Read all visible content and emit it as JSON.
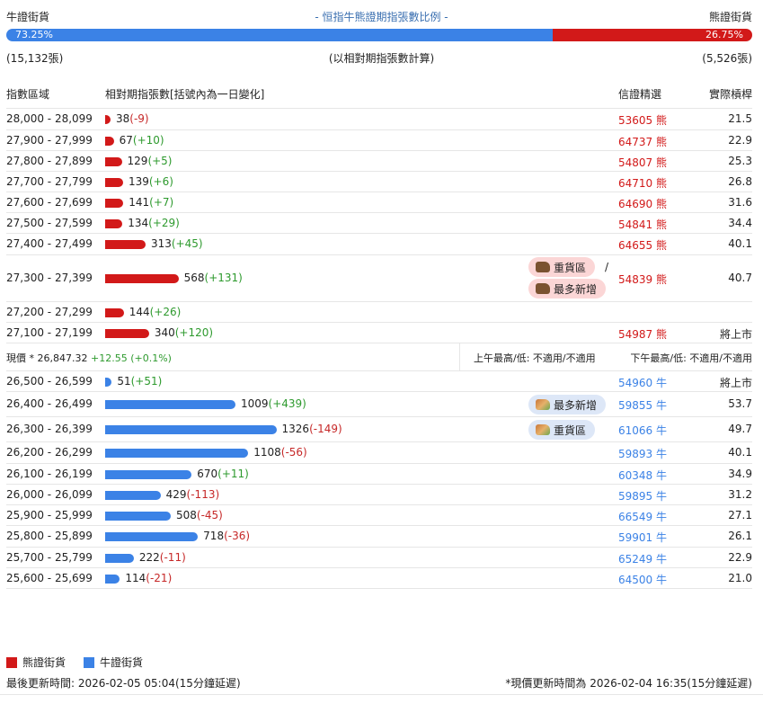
{
  "header": {
    "bull_label": "牛證街貨",
    "title": "- 恒指牛熊證期指張數比例 -",
    "bear_label": "熊證街貨",
    "bull_pct_label": "73.25%",
    "bear_pct_label": "26.75%",
    "bull_pct": 73.25,
    "bear_pct": 26.75,
    "bull_count": "(15,132張)",
    "note": "(以相對期指張數計算)",
    "bear_count": "(5,526張)"
  },
  "columns": {
    "range": "指數區域",
    "count": "相對期指張數[括號內為一日變化]",
    "cert": "信證精選",
    "leverage": "實際槓桿"
  },
  "colors": {
    "bear": "#d21919",
    "bull": "#3b82e6",
    "up": "#2e9a2e",
    "down": "#c62828"
  },
  "bear_rows": [
    {
      "range": "28,000 - 28,099",
      "count": 38,
      "count_text": "38",
      "change": "(-9)",
      "cert": "53605",
      "suffix": "熊",
      "leverage": "21.5"
    },
    {
      "range": "27,900 - 27,999",
      "count": 67,
      "count_text": "67",
      "change": "(+10)",
      "cert": "64737",
      "suffix": "熊",
      "leverage": "22.9"
    },
    {
      "range": "27,800 - 27,899",
      "count": 129,
      "count_text": "129",
      "change": "(+5)",
      "cert": "54807",
      "suffix": "熊",
      "leverage": "25.3"
    },
    {
      "range": "27,700 - 27,799",
      "count": 139,
      "count_text": "139",
      "change": "(+6)",
      "cert": "64710",
      "suffix": "熊",
      "leverage": "26.8"
    },
    {
      "range": "27,600 - 27,699",
      "count": 141,
      "count_text": "141",
      "change": "(+7)",
      "cert": "64690",
      "suffix": "熊",
      "leverage": "31.6"
    },
    {
      "range": "27,500 - 27,599",
      "count": 134,
      "count_text": "134",
      "change": "(+29)",
      "cert": "54841",
      "suffix": "熊",
      "leverage": "34.4"
    },
    {
      "range": "27,400 - 27,499",
      "count": 313,
      "count_text": "313",
      "change": "(+45)",
      "cert": "64655",
      "suffix": "熊",
      "leverage": "40.1"
    },
    {
      "range": "27,300 - 27,399",
      "count": 568,
      "count_text": "568",
      "change": "(+131)",
      "cert": "54839",
      "suffix": "熊",
      "leverage": "40.7",
      "tags": [
        "重貨區",
        "最多新增"
      ]
    },
    {
      "range": "27,200 - 27,299",
      "count": 144,
      "count_text": "144",
      "change": "(+26)",
      "cert": "",
      "suffix": "",
      "leverage": ""
    },
    {
      "range": "27,100 - 27,199",
      "count": 340,
      "count_text": "340",
      "change": "(+120)",
      "cert": "54987",
      "suffix": "熊",
      "leverage": "將上市"
    }
  ],
  "price": {
    "label": "現價 *",
    "value": "26,847.32",
    "change": "+12.55 (+0.1%)",
    "am": "上午最高/低: 不適用/不適用",
    "pm": "下午最高/低: 不適用/不適用"
  },
  "bull_rows": [
    {
      "range": "26,500 - 26,599",
      "count": 51,
      "count_text": "51",
      "change": "(+51)",
      "cert": "54960",
      "suffix": "牛",
      "leverage": "將上市"
    },
    {
      "range": "26,400 - 26,499",
      "count": 1009,
      "count_text": "1009",
      "change": "(+439)",
      "cert": "59855",
      "suffix": "牛",
      "leverage": "53.7",
      "tags": [
        "最多新增"
      ]
    },
    {
      "range": "26,300 - 26,399",
      "count": 1326,
      "count_text": "1326",
      "change": "(-149)",
      "cert": "61066",
      "suffix": "牛",
      "leverage": "49.7",
      "tags": [
        "重貨區"
      ]
    },
    {
      "range": "26,200 - 26,299",
      "count": 1108,
      "count_text": "1108",
      "change": "(-56)",
      "cert": "59893",
      "suffix": "牛",
      "leverage": "40.1"
    },
    {
      "range": "26,100 - 26,199",
      "count": 670,
      "count_text": "670",
      "change": "(+11)",
      "cert": "60348",
      "suffix": "牛",
      "leverage": "34.9"
    },
    {
      "range": "26,000 - 26,099",
      "count": 429,
      "count_text": "429",
      "change": "(-113)",
      "cert": "59895",
      "suffix": "牛",
      "leverage": "31.2"
    },
    {
      "range": "25,900 - 25,999",
      "count": 508,
      "count_text": "508",
      "change": "(-45)",
      "cert": "66549",
      "suffix": "牛",
      "leverage": "27.1"
    },
    {
      "range": "25,800 - 25,899",
      "count": 718,
      "count_text": "718",
      "change": "(-36)",
      "cert": "59901",
      "suffix": "牛",
      "leverage": "26.1"
    },
    {
      "range": "25,700 - 25,799",
      "count": 222,
      "count_text": "222",
      "change": "(-11)",
      "cert": "65249",
      "suffix": "牛",
      "leverage": "22.9"
    },
    {
      "range": "25,600 - 25,699",
      "count": 114,
      "count_text": "114",
      "change": "(-21)",
      "cert": "64500",
      "suffix": "牛",
      "leverage": "21.0"
    }
  ],
  "legend": {
    "bear": "熊證街貨",
    "bull": "牛證街貨"
  },
  "footer": {
    "updated": "最後更新時間: 2026-02-05 05:04(15分鐘延遲)",
    "price_updated": "*現價更新時間為 2026-02-04 16:35(15分鐘延遲)"
  }
}
